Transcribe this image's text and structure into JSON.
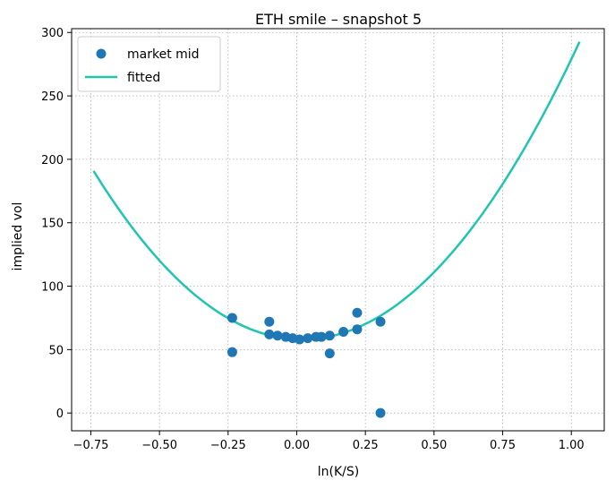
{
  "chart_data": {
    "type": "scatter",
    "title": "ETH smile – snapshot 5",
    "xlabel": "ln(K/S)",
    "ylabel": "implied vol",
    "xlim": [
      -0.82,
      1.12
    ],
    "ylim": [
      -14,
      303
    ],
    "xticks": [
      -0.75,
      -0.5,
      -0.25,
      0.0,
      0.25,
      0.5,
      0.75,
      1.0
    ],
    "xtick_labels": [
      "−0.75",
      "−0.50",
      "−0.25",
      "0.00",
      "0.25",
      "0.50",
      "0.75",
      "1.00"
    ],
    "yticks": [
      0,
      50,
      100,
      150,
      200,
      250,
      300
    ],
    "ytick_labels": [
      "0",
      "50",
      "100",
      "150",
      "200",
      "250",
      "300"
    ],
    "grid": true,
    "legend_position": "top-left",
    "series": [
      {
        "name": "market mid",
        "kind": "scatter",
        "color": "#1f77b4",
        "x": [
          -0.235,
          -0.235,
          -0.1,
          -0.1,
          -0.07,
          -0.04,
          -0.015,
          0.01,
          0.04,
          0.07,
          0.09,
          0.12,
          0.12,
          0.17,
          0.22,
          0.22,
          0.305,
          0.305
        ],
        "y": [
          75,
          48,
          72,
          62,
          61,
          60,
          59,
          58,
          59,
          60,
          60,
          61,
          47,
          64,
          79,
          66,
          72,
          0
        ]
      },
      {
        "name": "fitted",
        "kind": "line",
        "color": "#20c5b0",
        "curve": {
          "x_min": -0.74,
          "x_max": 1.03,
          "x_vertex": 0.02,
          "y_vertex": 58,
          "a": 230
        }
      }
    ]
  }
}
